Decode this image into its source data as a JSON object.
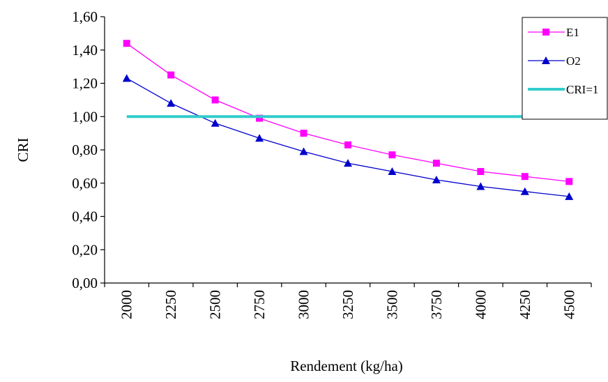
{
  "chart_data": {
    "type": "line",
    "ylabel": "CRI",
    "xlabel": "Rendement (kg/ha)",
    "categories": [
      "2000",
      "2250",
      "2500",
      "2750",
      "3000",
      "3250",
      "3500",
      "3750",
      "4000",
      "4250",
      "4500"
    ],
    "ylim": [
      0,
      1.6
    ],
    "yticks": [
      "0,00",
      "0,20",
      "0,40",
      "0,60",
      "0,80",
      "1,00",
      "1,20",
      "1,40",
      "1,60"
    ],
    "series": [
      {
        "name": "E1",
        "values": [
          1.44,
          1.25,
          1.1,
          0.99,
          0.9,
          0.83,
          0.77,
          0.72,
          0.67,
          0.64,
          0.61
        ],
        "color": "#ff00ff",
        "marker": "square"
      },
      {
        "name": "O2",
        "values": [
          1.23,
          1.08,
          0.96,
          0.87,
          0.79,
          0.72,
          0.67,
          0.62,
          0.58,
          0.55,
          0.52
        ],
        "color": "#0000cc",
        "marker": "triangle"
      },
      {
        "name": "CRI=1",
        "values": [
          1,
          1,
          1,
          1,
          1,
          1,
          1,
          1,
          1,
          1,
          1
        ],
        "color": "#33cccc",
        "marker": "none"
      }
    ],
    "grid": false,
    "legend_position": "top-right"
  }
}
